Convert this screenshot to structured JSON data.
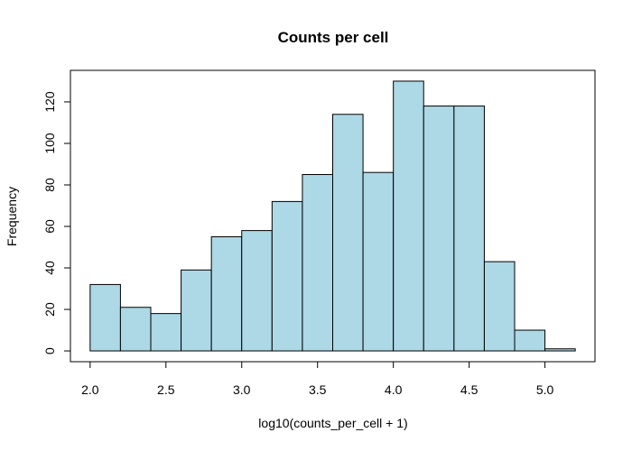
{
  "chart_data": {
    "type": "bar",
    "subtype": "histogram",
    "title": "Counts per cell",
    "xlabel": "log10(counts_per_cell + 1)",
    "ylabel": "Frequency",
    "bin_edges": [
      2.0,
      2.2,
      2.4,
      2.6,
      2.8,
      3.0,
      3.2,
      3.4,
      3.6,
      3.8,
      4.0,
      4.2,
      4.4,
      4.6,
      4.8,
      5.0,
      5.2
    ],
    "values": [
      32,
      21,
      18,
      39,
      55,
      58,
      72,
      85,
      114,
      86,
      130,
      118,
      118,
      43,
      10,
      1
    ],
    "xlim": [
      1.87,
      5.33
    ],
    "ylim": [
      -5.2,
      135.2
    ],
    "x_ticks": [
      2.0,
      2.5,
      3.0,
      3.5,
      4.0,
      4.5,
      5.0
    ],
    "x_tick_labels": [
      "2.0",
      "2.5",
      "3.0",
      "3.5",
      "4.0",
      "4.5",
      "5.0"
    ],
    "y_ticks": [
      0,
      20,
      40,
      60,
      80,
      100,
      120
    ],
    "y_tick_labels": [
      "0",
      "20",
      "40",
      "60",
      "80",
      "100",
      "120"
    ],
    "bar_fill": "#add8e6",
    "bar_stroke": "#000000",
    "grid": false,
    "legend": "none"
  }
}
